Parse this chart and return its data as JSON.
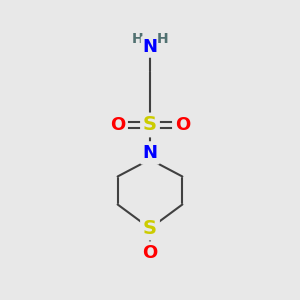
{
  "background_color": "#e8e8e8",
  "atom_colors": {
    "C": "#404040",
    "N": "#0000ff",
    "S": "#cccc00",
    "O": "#ff0000",
    "H": "#507070"
  },
  "bond_color": "#404040",
  "bond_width": 1.5,
  "figsize": [
    3.0,
    3.0
  ],
  "dpi": 100,
  "xlim": [
    0,
    10
  ],
  "ylim": [
    0,
    10
  ]
}
